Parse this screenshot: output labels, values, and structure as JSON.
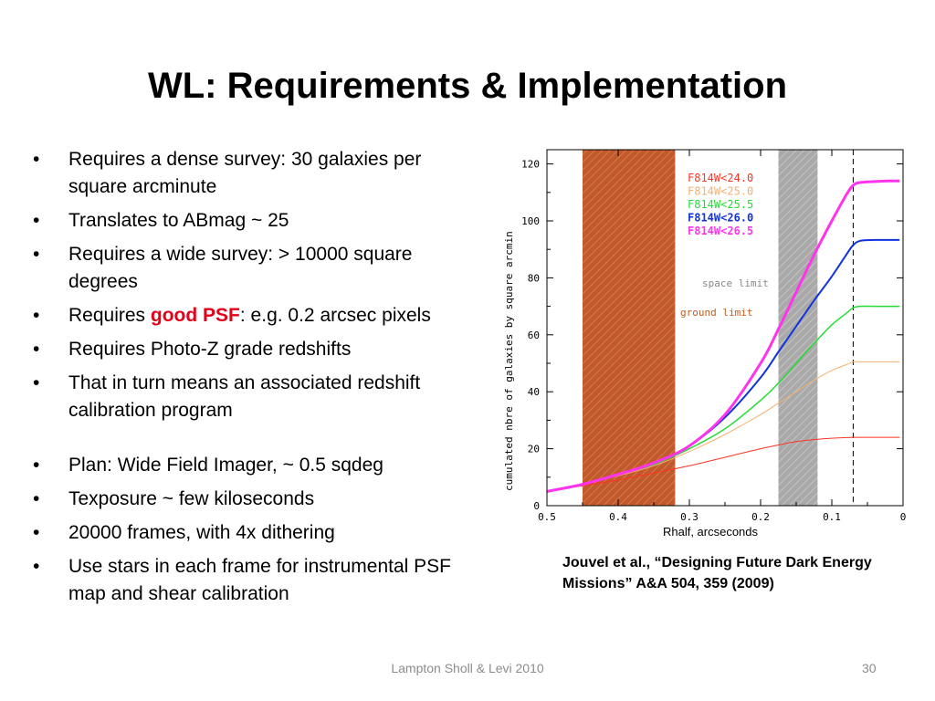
{
  "title": "WL: Requirements & Implementation",
  "bullets": [
    {
      "text": "Requires a dense survey: 30 galaxies per square arcminute"
    },
    {
      "text": "Translates to ABmag ~ 25"
    },
    {
      "text": "Requires a wide survey: > 10000 square degrees"
    },
    {
      "pre": "Requires ",
      "highlight": "good PSF",
      "post": ":  e.g. 0.2 arcsec pixels"
    },
    {
      "text": "Requires Photo-Z grade redshifts"
    },
    {
      "text": "That in turn means an associated redshift calibration program"
    },
    {
      "text": "Plan: Wide Field Imager, ~ 0.5 sqdeg"
    },
    {
      "text": "Texposure ~ few kiloseconds"
    },
    {
      "text": "20000 frames, with 4x dithering"
    },
    {
      "text": "Use stars in each frame for instrumental PSF map and shear calibration"
    }
  ],
  "bullet_symbol": "•",
  "citation": "Jouvel  et al.,  “Designing Future Dark Energy Missions” A&A 504, 359 (2009)",
  "footer": {
    "left": "Lampton Sholl & Levi 2010",
    "page": "30"
  },
  "colors": {
    "highlight": "#e3001b",
    "ground_band": "#c0592b",
    "space_band": "#a9a9a9"
  },
  "chart_data": {
    "type": "line",
    "xlabel": "Rhalf, arcseconds",
    "ylabel": "cumulated nbre of galaxies by square arcmin",
    "xlim": [
      0.5,
      0
    ],
    "ylim": [
      0,
      125
    ],
    "xticks": [
      0.5,
      0.4,
      0.3,
      0.2,
      0.1,
      0
    ],
    "xtick_labels": [
      "0.5",
      "0.4",
      "0.3",
      "0.2",
      "0.1",
      "0"
    ],
    "yticks": [
      0,
      20,
      40,
      60,
      80,
      100,
      120
    ],
    "ytick_labels": [
      "0",
      "20",
      "40",
      "60",
      "80",
      "100",
      "120"
    ],
    "x": [
      0.5,
      0.45,
      0.4,
      0.35,
      0.3,
      0.25,
      0.2,
      0.175,
      0.15,
      0.125,
      0.1,
      0.08,
      0.07,
      0.06,
      0.04,
      0.02,
      0.005
    ],
    "series": [
      {
        "name": "F814W<24.0",
        "color": "#ff3322",
        "width": 1,
        "values": [
          5,
          7,
          9,
          11.5,
          14,
          17,
          20,
          21.3,
          22.5,
          23.2,
          23.7,
          23.9,
          24,
          24,
          24,
          24,
          24
        ]
      },
      {
        "name": "F814W<25.0",
        "color": "#f5b070",
        "width": 1,
        "values": [
          5,
          7.5,
          10.5,
          14,
          19,
          25,
          32,
          36,
          40,
          44,
          47.5,
          49.5,
          50.5,
          50.5,
          50.5,
          50.5,
          50.5
        ]
      },
      {
        "name": "F814W<25.5",
        "color": "#22dd33",
        "width": 1.5,
        "values": [
          5,
          7.5,
          11,
          14.5,
          20,
          27,
          37,
          43,
          50,
          57,
          63.5,
          67.5,
          69.5,
          70,
          70,
          70,
          70
        ]
      },
      {
        "name": "F814W<26.0",
        "color": "#1133dd",
        "width": 2,
        "values": [
          5,
          7.5,
          11,
          15,
          21,
          31,
          45,
          54,
          63,
          72,
          80.5,
          88,
          91.5,
          93,
          93.3,
          93.3,
          93.3
        ]
      },
      {
        "name": "F814W<26.5",
        "color": "#ff33ee",
        "width": 3,
        "values": [
          5,
          7.5,
          11,
          15,
          21,
          32,
          50,
          62,
          75,
          88,
          100,
          109,
          112.5,
          113.5,
          113.8,
          114,
          114
        ]
      }
    ],
    "bands": [
      {
        "label": "ground limit",
        "from": 0.45,
        "to": 0.32,
        "color": "#c0592b",
        "label_color": "#c25a20"
      },
      {
        "label": "space limit",
        "from": 0.175,
        "to": 0.12,
        "color": "#a9a9a9",
        "label_color": "#888888"
      }
    ],
    "vline": {
      "x": 0.07,
      "style": "dashed"
    },
    "legend_position": "top-right"
  }
}
